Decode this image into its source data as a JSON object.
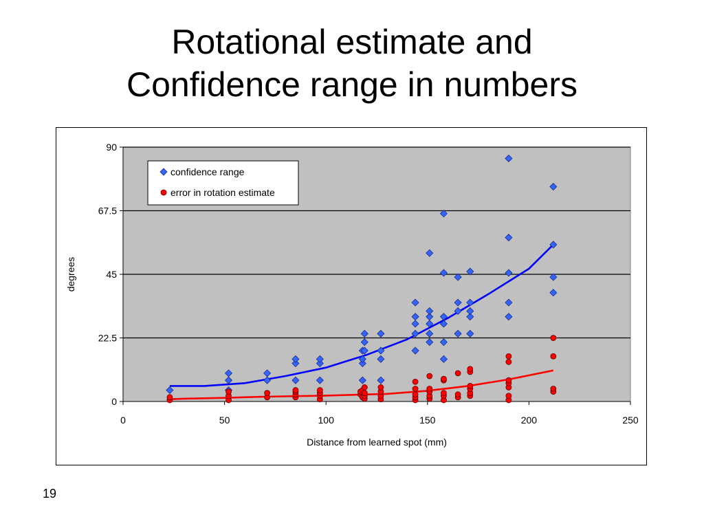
{
  "slide": {
    "title_line1": "Rotational estimate and",
    "title_line2": "Confidence range in numbers",
    "page_number": "19"
  },
  "chart_data": {
    "type": "scatter",
    "title": "",
    "xlabel": "Distance from learned spot (mm)",
    "ylabel": "degrees",
    "xlim": [
      0,
      250
    ],
    "ylim": [
      0,
      90
    ],
    "xticks": [
      0,
      50,
      100,
      150,
      200,
      250
    ],
    "yticks": [
      0,
      22.5,
      45,
      67.5,
      90
    ],
    "ytick_labels": [
      "0",
      "22.5",
      "45",
      "67.5",
      "90"
    ],
    "plot_background": "#c0c0c0",
    "grid": "horizontal",
    "legend_position": "top-left",
    "series": [
      {
        "name": "confidence range",
        "color": "#3366ff",
        "marker": "diamond",
        "points": [
          [
            23,
            4
          ],
          [
            52,
            4
          ],
          [
            52,
            7.5
          ],
          [
            52,
            10
          ],
          [
            71,
            7.5
          ],
          [
            71,
            10
          ],
          [
            85,
            7.5
          ],
          [
            85,
            13.5
          ],
          [
            85,
            15
          ],
          [
            97,
            7.5
          ],
          [
            97,
            13.5
          ],
          [
            97,
            15
          ],
          [
            118,
            7.5
          ],
          [
            118,
            13.5
          ],
          [
            118,
            15
          ],
          [
            118,
            18
          ],
          [
            119,
            18
          ],
          [
            119,
            21
          ],
          [
            119,
            24
          ],
          [
            127,
            7.5
          ],
          [
            127,
            15
          ],
          [
            127,
            18
          ],
          [
            127,
            24
          ],
          [
            144,
            18
          ],
          [
            144,
            24
          ],
          [
            144,
            27.5
          ],
          [
            144,
            30
          ],
          [
            144,
            35
          ],
          [
            151,
            21
          ],
          [
            151,
            24
          ],
          [
            151,
            27.5
          ],
          [
            151,
            30
          ],
          [
            151,
            32
          ],
          [
            151,
            52.5
          ],
          [
            158,
            15
          ],
          [
            158,
            21
          ],
          [
            158,
            27.5
          ],
          [
            158,
            30
          ],
          [
            158,
            45.5
          ],
          [
            158,
            66.5
          ],
          [
            165,
            24
          ],
          [
            165,
            32
          ],
          [
            165,
            35
          ],
          [
            165,
            44
          ],
          [
            171,
            24
          ],
          [
            171,
            30
          ],
          [
            171,
            32
          ],
          [
            171,
            35
          ],
          [
            171,
            46
          ],
          [
            190,
            30
          ],
          [
            190,
            35
          ],
          [
            190,
            45.5
          ],
          [
            190,
            58
          ],
          [
            190,
            86
          ],
          [
            212,
            38.5
          ],
          [
            212,
            44
          ],
          [
            212,
            55.5
          ],
          [
            212,
            76
          ]
        ],
        "trendline": [
          [
            23,
            5.5
          ],
          [
            40,
            5.5
          ],
          [
            60,
            6.5
          ],
          [
            80,
            9
          ],
          [
            100,
            12
          ],
          [
            120,
            16.5
          ],
          [
            140,
            22
          ],
          [
            160,
            29.5
          ],
          [
            180,
            38
          ],
          [
            200,
            47
          ],
          [
            212,
            55.5
          ]
        ]
      },
      {
        "name": "error in rotation estimate",
        "color": "#ff0000",
        "marker": "circle",
        "points": [
          [
            23,
            0.5
          ],
          [
            23,
            1.5
          ],
          [
            52,
            0.5
          ],
          [
            52,
            2
          ],
          [
            52,
            3.5
          ],
          [
            71,
            1.5
          ],
          [
            71,
            3
          ],
          [
            85,
            1.5
          ],
          [
            85,
            2.5
          ],
          [
            85,
            3.5
          ],
          [
            85,
            4
          ],
          [
            97,
            0.8
          ],
          [
            97,
            2
          ],
          [
            97,
            3
          ],
          [
            97,
            4
          ],
          [
            117,
            2.5
          ],
          [
            117,
            3.5
          ],
          [
            118,
            1.5
          ],
          [
            118,
            4
          ],
          [
            119,
            1
          ],
          [
            119,
            2
          ],
          [
            119,
            3
          ],
          [
            119,
            5
          ],
          [
            127,
            0.8
          ],
          [
            127,
            2
          ],
          [
            127,
            3.5
          ],
          [
            127,
            5
          ],
          [
            144,
            0.5
          ],
          [
            144,
            1.5
          ],
          [
            144,
            2.5
          ],
          [
            144,
            4.5
          ],
          [
            144,
            7
          ],
          [
            151,
            1
          ],
          [
            151,
            2
          ],
          [
            151,
            3.5
          ],
          [
            151,
            4.5
          ],
          [
            151,
            9
          ],
          [
            158,
            0.5
          ],
          [
            158,
            2
          ],
          [
            158,
            3
          ],
          [
            158,
            7.5
          ],
          [
            158,
            8
          ],
          [
            165,
            1.5
          ],
          [
            165,
            2.5
          ],
          [
            165,
            10
          ],
          [
            171,
            2
          ],
          [
            171,
            3
          ],
          [
            171,
            4.5
          ],
          [
            171,
            5.5
          ],
          [
            171,
            10.5
          ],
          [
            171,
            11.5
          ],
          [
            190,
            0.5
          ],
          [
            190,
            2
          ],
          [
            190,
            5
          ],
          [
            190,
            6.5
          ],
          [
            190,
            7.5
          ],
          [
            190,
            14
          ],
          [
            190,
            16
          ],
          [
            212,
            3.5
          ],
          [
            212,
            4.5
          ],
          [
            212,
            16
          ],
          [
            212,
            22.5
          ]
        ],
        "trendline": [
          [
            23,
            0.8
          ],
          [
            30,
            1
          ],
          [
            50,
            1.3
          ],
          [
            70,
            1.7
          ],
          [
            100,
            2.1
          ],
          [
            130,
            2.7
          ],
          [
            150,
            3.8
          ],
          [
            170,
            5.5
          ],
          [
            190,
            7.8
          ],
          [
            212,
            11
          ]
        ]
      }
    ]
  }
}
